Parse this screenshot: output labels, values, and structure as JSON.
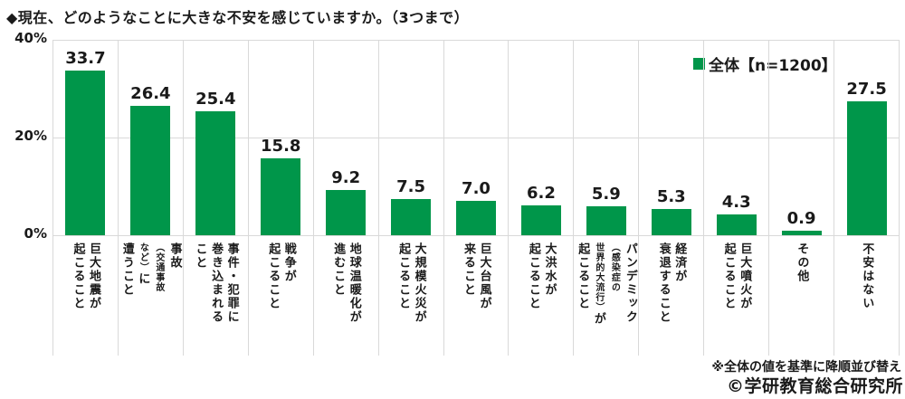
{
  "chart_data": {
    "type": "bar",
    "title": "◆現在、どのようなことに大きな不安を感じていますか。（3つまで）",
    "legend": "全体【n=1200】",
    "unit": "%",
    "ylim": [
      0,
      40
    ],
    "yticks": [
      "40%",
      "20%",
      "0%"
    ],
    "grid": true,
    "legend_position": "top-right",
    "bar_color": "#00964a",
    "gridline_color": "#d9d9d9",
    "categories": [
      "巨大地震が起こること",
      "事故（交通事故など）に遭うこと",
      "事件・犯罪に巻き込まれること",
      "戦争が起こること",
      "地球温暖化が進むこと",
      "大規模火災が起こること",
      "巨大台風が来ること",
      "大洪水が起こること",
      "パンデミック（感染症の世界的大流行）が起こること",
      "経済が衰退すること",
      "巨大噴火が起こること",
      "その他",
      "不安はない"
    ],
    "values": [
      "33.7",
      "26.4",
      "25.4",
      "15.8",
      "9.2",
      "7.5",
      "7.0",
      "6.2",
      "5.9",
      "5.3",
      "4.3",
      "0.9",
      "27.5"
    ],
    "category_lines": [
      [
        [
          {
            "t": "巨大地震が"
          }
        ],
        [
          {
            "t": "起こること"
          }
        ]
      ],
      [
        [
          {
            "t": "事故"
          }
        ],
        [
          {
            "t": "（交通事故",
            "s": true
          }
        ],
        [
          {
            "t": "など）",
            "s": true
          },
          {
            "t": "に"
          }
        ],
        [
          {
            "t": "遭うこと"
          }
        ]
      ],
      [
        [
          {
            "t": "事件・犯罪に"
          }
        ],
        [
          {
            "t": "巻き込まれる"
          }
        ],
        [
          {
            "t": "こと"
          }
        ]
      ],
      [
        [
          {
            "t": "戦争が"
          }
        ],
        [
          {
            "t": "起こること"
          }
        ]
      ],
      [
        [
          {
            "t": "地球温暖化が"
          }
        ],
        [
          {
            "t": "進むこと"
          }
        ]
      ],
      [
        [
          {
            "t": "大規模火災が"
          }
        ],
        [
          {
            "t": "起こること"
          }
        ]
      ],
      [
        [
          {
            "t": "巨大台風が"
          }
        ],
        [
          {
            "t": "来ること"
          }
        ]
      ],
      [
        [
          {
            "t": "大洪水が"
          }
        ],
        [
          {
            "t": "起こること"
          }
        ]
      ],
      [
        [
          {
            "t": "パンデミック"
          }
        ],
        [
          {
            "t": "（感染症の",
            "s": true
          }
        ],
        [
          {
            "t": "世界的大流行）",
            "s": true
          },
          {
            "t": "が"
          }
        ],
        [
          {
            "t": "起こること"
          }
        ]
      ],
      [
        [
          {
            "t": "経済が"
          }
        ],
        [
          {
            "t": "衰退すること"
          }
        ]
      ],
      [
        [
          {
            "t": "巨大噴火が"
          }
        ],
        [
          {
            "t": "起こること"
          }
        ]
      ],
      [
        [
          {
            "t": "その他"
          }
        ]
      ],
      [
        [
          {
            "t": "不安はない"
          }
        ]
      ]
    ],
    "footnote": "※全体の値を基準に降順並び替え",
    "copyright": "©学研教育総合研究所"
  }
}
